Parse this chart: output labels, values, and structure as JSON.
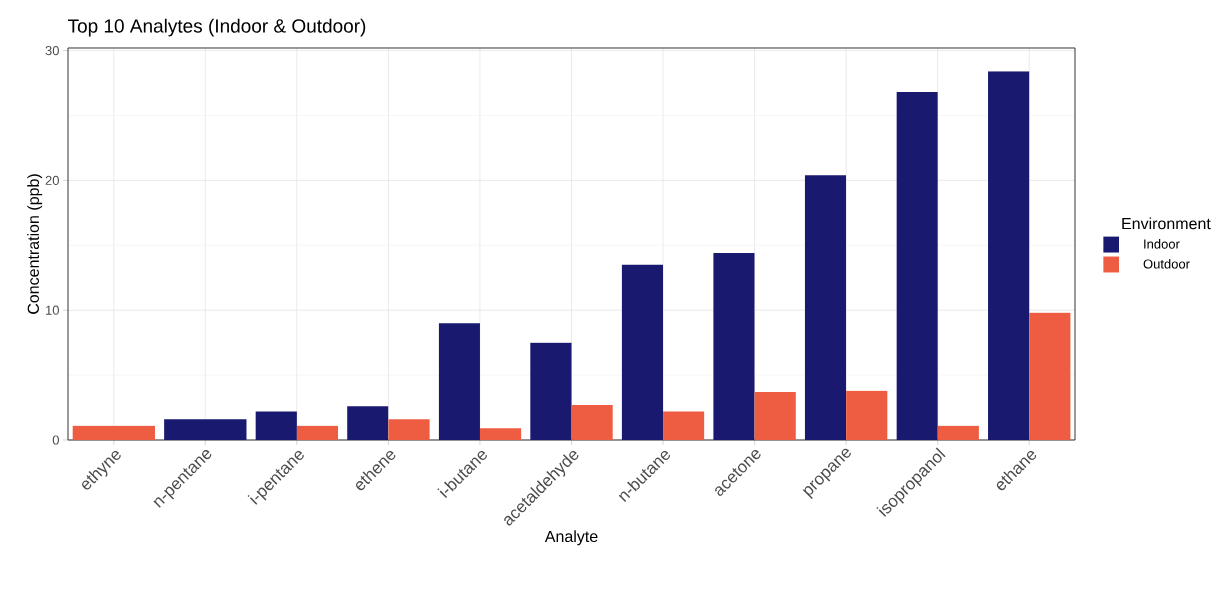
{
  "chart_data": {
    "type": "bar",
    "title": "Top 10 Analytes (Indoor & Outdoor)",
    "xlabel": "Analyte",
    "ylabel": "Concentration (ppb)",
    "legend_title": "Environment",
    "categories": [
      "ethyne",
      "n-pentane",
      "i-pentane",
      "ethene",
      "i-butane",
      "acetaldehyde",
      "n-butane",
      "acetone",
      "propane",
      "isopropanol",
      "ethane"
    ],
    "series": [
      {
        "name": "Indoor",
        "color": "#191970",
        "values": [
          null,
          1.6,
          2.2,
          2.6,
          9.0,
          7.5,
          13.5,
          14.4,
          20.4,
          26.8,
          28.4
        ]
      },
      {
        "name": "Outdoor",
        "color": "#ee5c42",
        "values": [
          1.1,
          null,
          1.1,
          1.6,
          0.9,
          2.7,
          2.2,
          3.7,
          3.8,
          1.1,
          9.8
        ]
      }
    ],
    "ylim": [
      0,
      30.2
    ],
    "yticks": [
      0,
      10,
      20,
      30
    ],
    "grid": true,
    "legend": "right"
  }
}
